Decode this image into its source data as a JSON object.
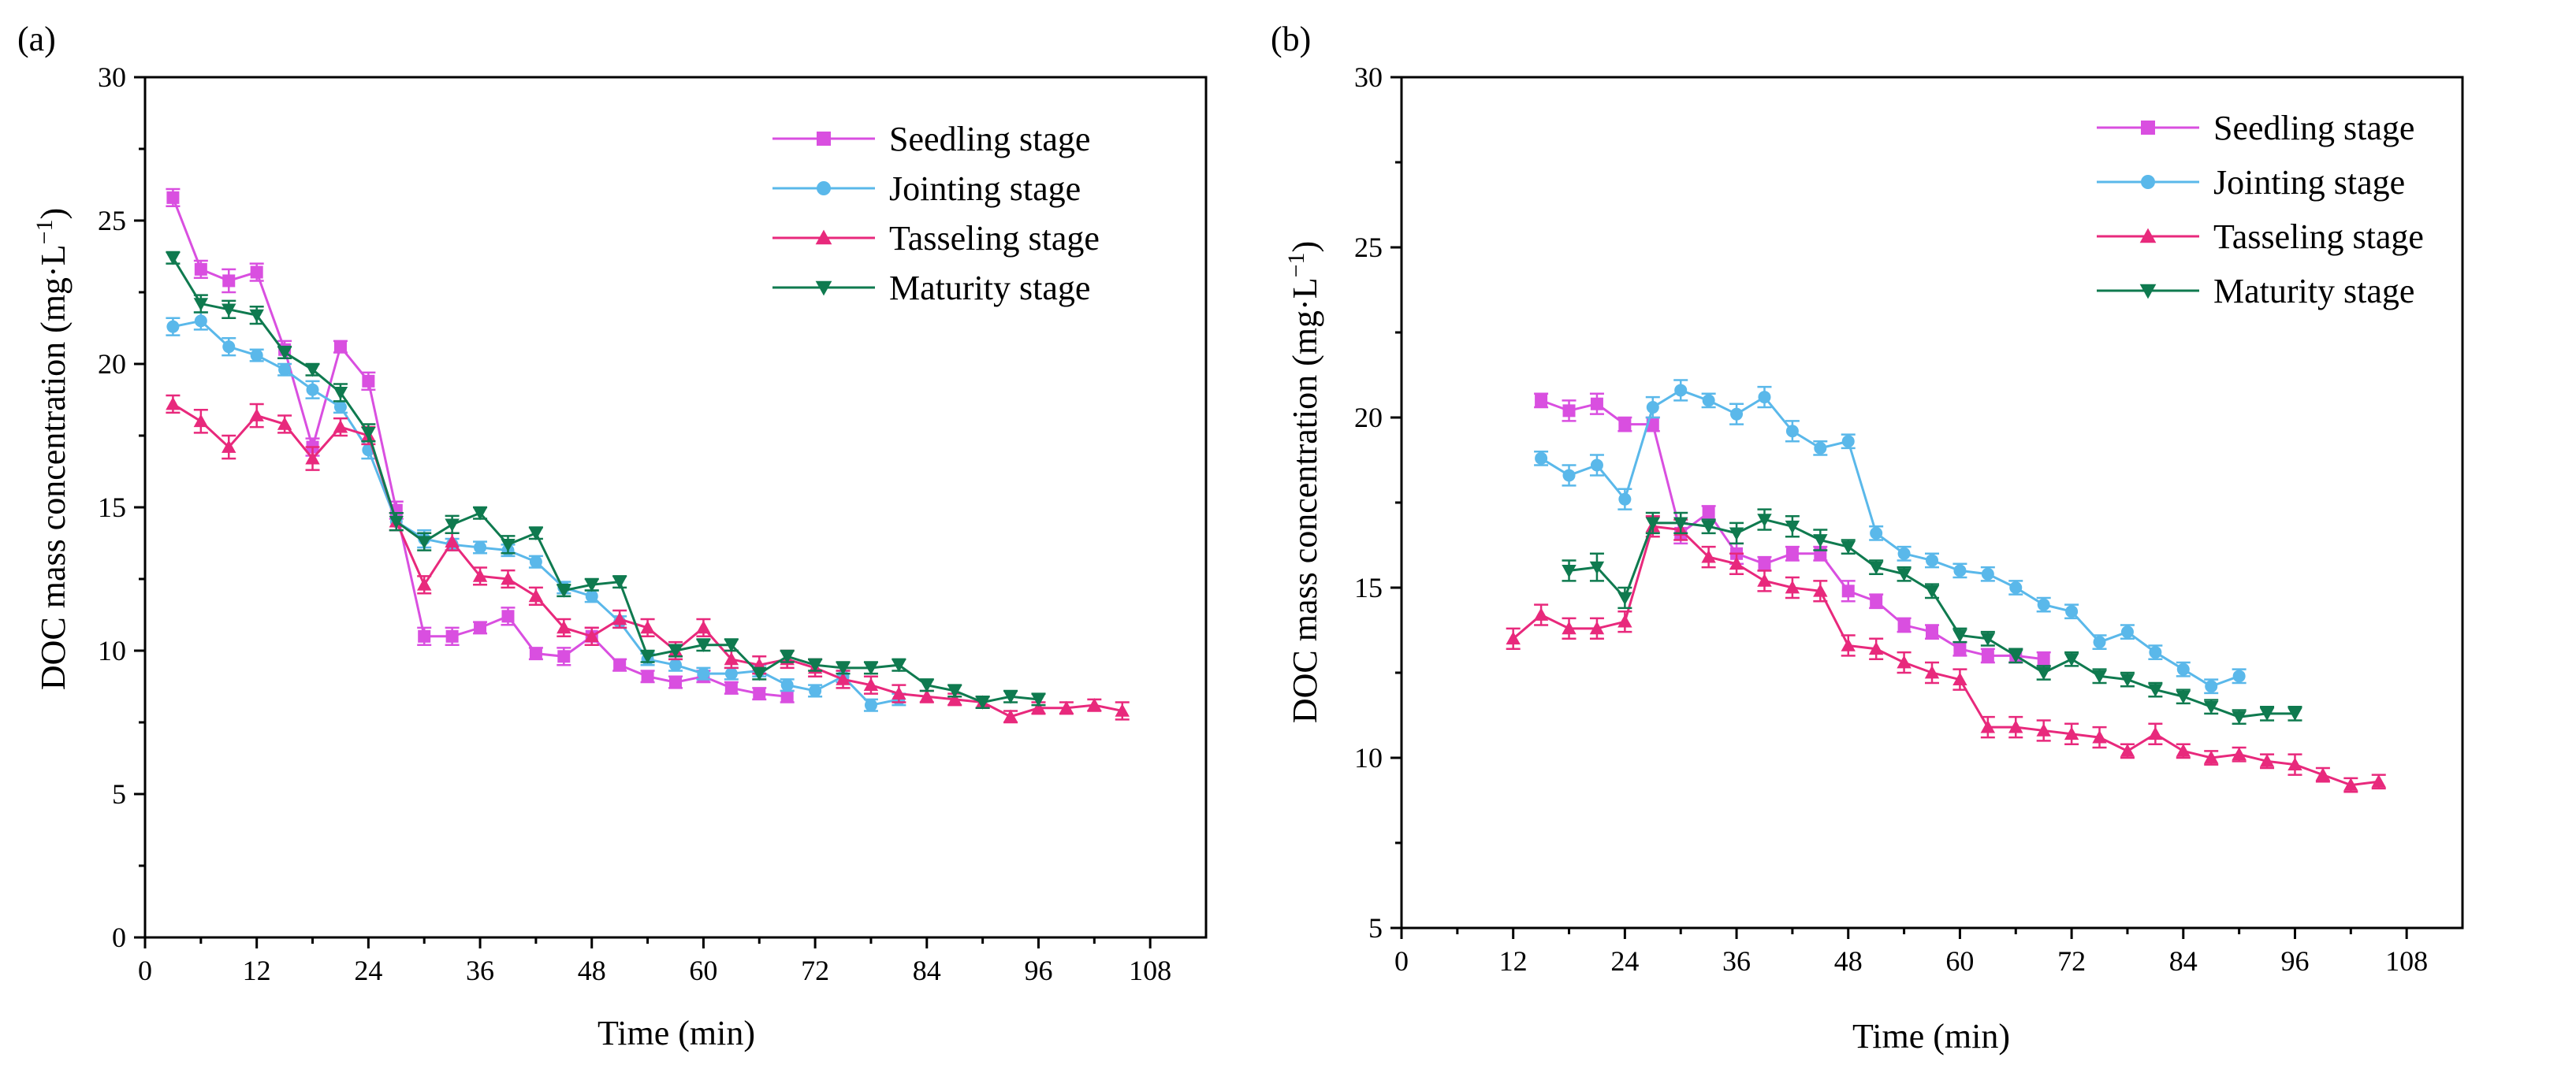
{
  "colors": {
    "seedling": "#d94fe0",
    "jointing": "#5ab8ea",
    "tasseling": "#e8297c",
    "maturity": "#0f7a4f"
  },
  "chart_data": [
    {
      "panel_label": "(a)",
      "type": "line",
      "xlabel": "Time (min)",
      "ylabel_main": "DOC mass concentration  (mg·L",
      "ylabel_sup": "−1",
      "ylabel_close": ")",
      "xlim": [
        0,
        114
      ],
      "ylim": [
        0,
        30
      ],
      "xticks": [
        0,
        12,
        24,
        36,
        48,
        60,
        72,
        84,
        96,
        108
      ],
      "xtick_labels": [
        "0",
        "12",
        "24",
        "36",
        "48",
        "60",
        "72",
        "84",
        "96",
        "108"
      ],
      "yticks": [
        0,
        5,
        10,
        15,
        20,
        25,
        30
      ],
      "ytick_labels": [
        "0",
        "5",
        "10",
        "15",
        "20",
        "25",
        "30"
      ],
      "legend_position": "top-right",
      "series": [
        {
          "key": "seedling",
          "name": "Seedling stage",
          "marker": "square",
          "x": [
            3,
            6,
            9,
            12,
            15,
            18,
            21,
            24,
            27,
            30,
            33,
            36,
            39,
            42,
            45,
            48,
            51,
            54,
            57,
            60,
            63,
            66,
            69
          ],
          "y": [
            25.8,
            23.3,
            22.9,
            23.2,
            20.5,
            17.1,
            20.6,
            19.4,
            14.9,
            10.5,
            10.5,
            10.8,
            11.2,
            9.9,
            9.8,
            10.5,
            9.5,
            9.1,
            8.9,
            9.1,
            8.7,
            8.5,
            8.4
          ],
          "err": [
            0.3,
            0.3,
            0.4,
            0.3,
            0.3,
            0.3,
            0.2,
            0.3,
            0.3,
            0.3,
            0.3,
            0.2,
            0.3,
            0.2,
            0.3,
            0.3,
            0.2,
            0.2,
            0.2,
            0.2,
            0.2,
            0.2,
            0.2
          ]
        },
        {
          "key": "jointing",
          "name": "Jointing stage",
          "marker": "circle",
          "x": [
            3,
            6,
            9,
            12,
            15,
            18,
            21,
            24,
            27,
            30,
            33,
            36,
            39,
            42,
            45,
            48,
            51,
            54,
            57,
            60,
            63,
            66,
            69,
            72,
            75,
            78,
            81
          ],
          "y": [
            21.3,
            21.5,
            20.6,
            20.3,
            19.8,
            19.1,
            18.5,
            17.0,
            14.5,
            13.9,
            13.7,
            13.6,
            13.5,
            13.1,
            12.2,
            11.9,
            11.0,
            9.7,
            9.5,
            9.2,
            9.2,
            9.3,
            8.8,
            8.6,
            9.1,
            8.1,
            8.3
          ],
          "err": [
            0.3,
            0.3,
            0.3,
            0.2,
            0.2,
            0.3,
            0.2,
            0.3,
            0.3,
            0.3,
            0.2,
            0.2,
            0.2,
            0.2,
            0.2,
            0.2,
            0.2,
            0.2,
            0.2,
            0.2,
            0.2,
            0.2,
            0.2,
            0.2,
            0.2,
            0.2,
            0.2
          ]
        },
        {
          "key": "tasseling",
          "name": "Tasseling stage",
          "marker": "triangle-up",
          "x": [
            3,
            6,
            9,
            12,
            15,
            18,
            21,
            24,
            27,
            30,
            33,
            36,
            39,
            42,
            45,
            48,
            51,
            54,
            57,
            60,
            63,
            66,
            69,
            72,
            75,
            78,
            81,
            84,
            87,
            90,
            93,
            96,
            99,
            102,
            105
          ],
          "y": [
            18.6,
            18.0,
            17.1,
            18.2,
            17.9,
            16.7,
            17.8,
            17.5,
            14.5,
            12.3,
            13.8,
            12.6,
            12.5,
            11.9,
            10.8,
            10.5,
            11.1,
            10.8,
            10.0,
            10.8,
            9.7,
            9.5,
            9.7,
            9.4,
            9.0,
            8.8,
            8.5,
            8.4,
            8.3,
            8.2,
            7.7,
            8.0,
            8.0,
            8.1,
            7.9
          ],
          "err": [
            0.3,
            0.4,
            0.4,
            0.4,
            0.3,
            0.4,
            0.3,
            0.3,
            0.3,
            0.3,
            0.3,
            0.3,
            0.3,
            0.3,
            0.3,
            0.3,
            0.3,
            0.3,
            0.3,
            0.3,
            0.3,
            0.3,
            0.3,
            0.3,
            0.3,
            0.3,
            0.3,
            0.2,
            0.2,
            0.2,
            0.2,
            0.2,
            0.2,
            0.2,
            0.3
          ]
        },
        {
          "key": "maturity",
          "name": "Maturity stage",
          "marker": "triangle-down",
          "x": [
            3,
            6,
            9,
            12,
            15,
            18,
            21,
            24,
            27,
            30,
            33,
            36,
            39,
            42,
            45,
            48,
            51,
            54,
            57,
            60,
            63,
            66,
            69,
            72,
            75,
            78,
            81,
            84,
            87,
            90,
            93,
            96
          ],
          "y": [
            23.7,
            22.1,
            21.9,
            21.7,
            20.4,
            19.8,
            19.0,
            17.6,
            14.5,
            13.8,
            14.4,
            14.8,
            13.7,
            14.1,
            12.1,
            12.3,
            12.4,
            9.8,
            10.0,
            10.2,
            10.2,
            9.2,
            9.8,
            9.5,
            9.4,
            9.4,
            9.5,
            8.8,
            8.6,
            8.2,
            8.4,
            8.3
          ],
          "err": [
            0.2,
            0.3,
            0.3,
            0.3,
            0.2,
            0.2,
            0.3,
            0.3,
            0.3,
            0.3,
            0.3,
            0.2,
            0.3,
            0.2,
            0.2,
            0.2,
            0.2,
            0.2,
            0.2,
            0.2,
            0.2,
            0.2,
            0.2,
            0.2,
            0.2,
            0.2,
            0.2,
            0.2,
            0.2,
            0.2,
            0.2,
            0.2
          ]
        }
      ]
    },
    {
      "panel_label": "(b)",
      "type": "line",
      "xlabel": "Time (min)",
      "ylabel_main": "DOC mass concentration  (mg·L",
      "ylabel_sup": "−1",
      "ylabel_close": ")",
      "xlim": [
        0,
        114
      ],
      "ylim": [
        5,
        30
      ],
      "xticks": [
        0,
        12,
        24,
        36,
        48,
        60,
        72,
        84,
        96,
        108
      ],
      "xtick_labels": [
        "0",
        "12",
        "24",
        "36",
        "48",
        "60",
        "72",
        "84",
        "96",
        "108"
      ],
      "yticks": [
        5,
        10,
        15,
        20,
        25,
        30
      ],
      "ytick_labels": [
        "5",
        "10",
        "15",
        "20",
        "25",
        "30"
      ],
      "legend_position": "top-right",
      "series": [
        {
          "key": "seedling",
          "name": "Seedling stage",
          "marker": "square",
          "x": [
            15,
            18,
            21,
            24,
            27,
            30,
            33,
            36,
            39,
            42,
            45,
            48,
            51,
            54,
            57,
            60,
            63,
            66,
            69
          ],
          "y": [
            20.5,
            20.2,
            20.4,
            19.8,
            19.8,
            16.6,
            17.2,
            16.0,
            15.7,
            16.0,
            16.0,
            14.9,
            14.6,
            13.9,
            13.7,
            13.2,
            13.0,
            13.0,
            12.9
          ],
          "err": [
            0.2,
            0.3,
            0.3,
            0.2,
            0.2,
            0.3,
            0.2,
            0.3,
            0.2,
            0.2,
            0.2,
            0.3,
            0.2,
            0.2,
            0.2,
            0.2,
            0.2,
            0.2,
            0.2
          ]
        },
        {
          "key": "jointing",
          "name": "Jointing stage",
          "marker": "circle",
          "x": [
            15,
            18,
            21,
            24,
            27,
            30,
            33,
            36,
            39,
            42,
            45,
            48,
            51,
            54,
            57,
            60,
            63,
            66,
            69,
            72,
            75,
            78,
            81,
            84,
            87,
            90
          ],
          "y": [
            18.8,
            18.3,
            18.6,
            17.6,
            20.3,
            20.8,
            20.5,
            20.1,
            20.6,
            19.6,
            19.1,
            19.3,
            16.6,
            16.0,
            15.8,
            15.5,
            15.4,
            15.0,
            14.5,
            14.3,
            13.4,
            13.7,
            13.1,
            12.6,
            12.1,
            12.4
          ],
          "err": [
            0.2,
            0.3,
            0.3,
            0.3,
            0.3,
            0.3,
            0.2,
            0.3,
            0.3,
            0.3,
            0.2,
            0.2,
            0.2,
            0.2,
            0.2,
            0.2,
            0.2,
            0.2,
            0.2,
            0.2,
            0.2,
            0.2,
            0.2,
            0.2,
            0.2,
            0.2
          ]
        },
        {
          "key": "tasseling",
          "name": "Tasseling stage",
          "marker": "triangle-up",
          "x": [
            12,
            15,
            18,
            21,
            24,
            27,
            30,
            33,
            36,
            39,
            42,
            45,
            48,
            51,
            54,
            57,
            60,
            63,
            66,
            69,
            72,
            75,
            78,
            81,
            84,
            87,
            90,
            93,
            96,
            99,
            102,
            105
          ],
          "y": [
            13.5,
            14.2,
            13.8,
            13.8,
            14.0,
            16.8,
            16.7,
            15.9,
            15.7,
            15.2,
            15.0,
            14.9,
            13.3,
            13.2,
            12.8,
            12.5,
            12.3,
            10.9,
            10.9,
            10.8,
            10.7,
            10.6,
            10.2,
            10.7,
            10.2,
            10.0,
            10.1,
            9.9,
            9.8,
            9.5,
            9.2,
            9.3
          ],
          "err": [
            0.3,
            0.3,
            0.3,
            0.3,
            0.3,
            0.3,
            0.3,
            0.3,
            0.3,
            0.3,
            0.3,
            0.3,
            0.3,
            0.3,
            0.3,
            0.3,
            0.3,
            0.3,
            0.3,
            0.3,
            0.3,
            0.3,
            0.2,
            0.3,
            0.2,
            0.2,
            0.2,
            0.2,
            0.3,
            0.2,
            0.2,
            0.2
          ]
        },
        {
          "key": "maturity",
          "name": "Maturity stage",
          "marker": "triangle-down",
          "x": [
            18,
            21,
            24,
            27,
            30,
            33,
            36,
            39,
            42,
            45,
            48,
            51,
            54,
            57,
            60,
            63,
            66,
            69,
            72,
            75,
            78,
            81,
            84,
            87,
            90,
            93,
            96
          ],
          "y": [
            15.5,
            15.6,
            14.7,
            16.9,
            16.9,
            16.8,
            16.6,
            17.0,
            16.8,
            16.4,
            16.2,
            15.6,
            15.4,
            14.9,
            13.6,
            13.5,
            13.0,
            12.5,
            12.9,
            12.4,
            12.3,
            12.0,
            11.8,
            11.5,
            11.2,
            11.3,
            11.3
          ],
          "err": [
            0.3,
            0.4,
            0.3,
            0.3,
            0.3,
            0.2,
            0.3,
            0.3,
            0.3,
            0.3,
            0.2,
            0.2,
            0.2,
            0.2,
            0.2,
            0.2,
            0.2,
            0.2,
            0.2,
            0.2,
            0.2,
            0.2,
            0.2,
            0.2,
            0.2,
            0.2,
            0.2
          ]
        }
      ]
    }
  ]
}
